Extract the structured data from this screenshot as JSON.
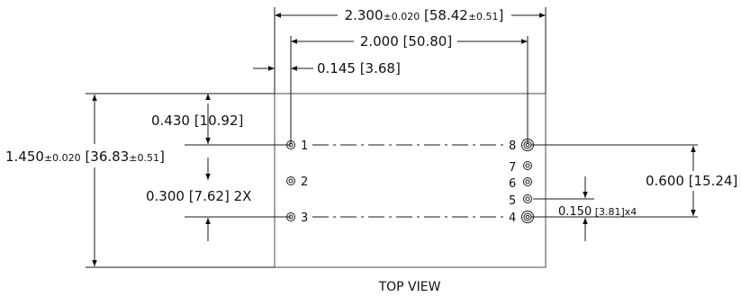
{
  "dimensions": {
    "overall_width": {
      "main": "2.300",
      "tol": "±0.020",
      "open": " [",
      "metric": "58.42",
      "mtol": "±0.51",
      "close": "]"
    },
    "pin_span": "2.000 [50.80]",
    "left_offset": "0.145 [3.68]",
    "top_offset": "0.430 [10.92]",
    "height": {
      "main": "1.450",
      "tol": "±0.020",
      "open": " [",
      "metric": "36.83",
      "mtol": "±0.51",
      "close": "]"
    },
    "left_pitch": "0.300 [7.62] 2X",
    "right_span": "0.600 [15.24]",
    "right_pitch": {
      "main": "0.150",
      "rest": " [3.81]x4"
    }
  },
  "pins": {
    "left": [
      "1",
      "2",
      "3"
    ],
    "right": [
      "8",
      "7",
      "6",
      "5",
      "4"
    ]
  },
  "view_label": "TOP VIEW"
}
